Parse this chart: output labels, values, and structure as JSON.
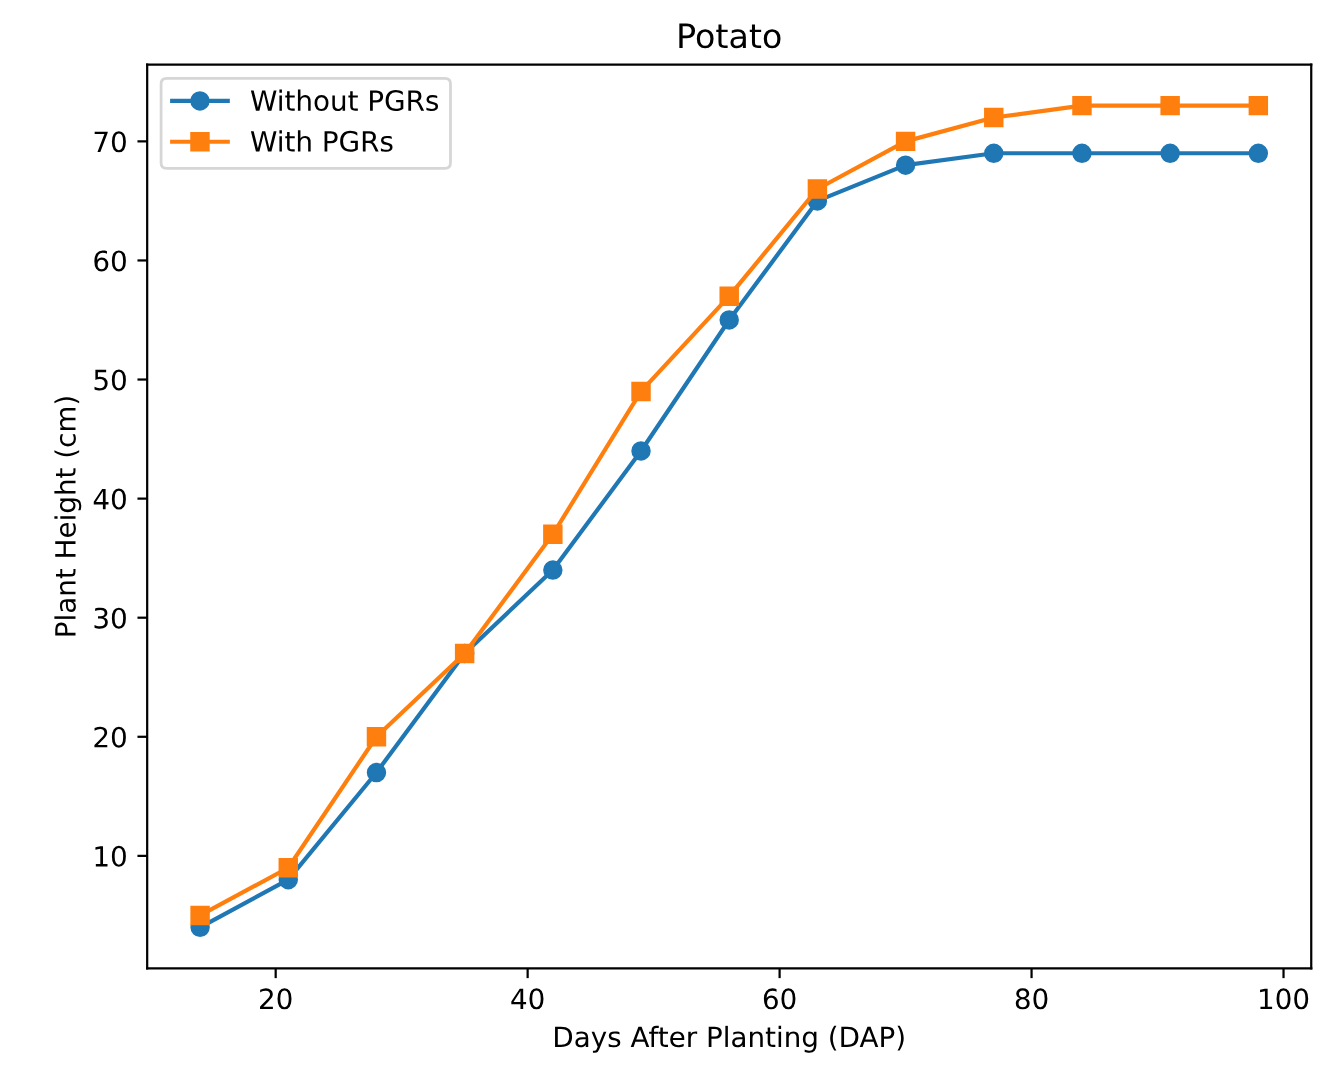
{
  "chart_data": {
    "type": "line",
    "title": "Potato",
    "xlabel": "Days After Planting (DAP)",
    "ylabel": "Plant Height (cm)",
    "x": [
      14,
      21,
      28,
      35,
      42,
      49,
      56,
      63,
      70,
      77,
      84,
      91,
      98
    ],
    "series": [
      {
        "name": "Without PGRs",
        "color": "#1f77b4",
        "marker": "circle",
        "values": [
          4,
          8,
          17,
          27,
          34,
          44,
          55,
          65,
          68,
          69,
          69,
          69,
          69
        ]
      },
      {
        "name": "With PGRs",
        "color": "#ff7f0e",
        "marker": "square",
        "values": [
          5,
          9,
          20,
          27,
          37,
          49,
          57,
          66,
          70,
          72,
          73,
          73,
          73
        ]
      }
    ],
    "xlim": [
      9.8,
      102.2
    ],
    "ylim": [
      0.55,
      76.45
    ],
    "xticks": [
      20,
      40,
      60,
      80,
      100
    ],
    "yticks": [
      10,
      20,
      30,
      40,
      50,
      60,
      70
    ],
    "grid": false,
    "legend": "top left",
    "line_style": "solid"
  }
}
